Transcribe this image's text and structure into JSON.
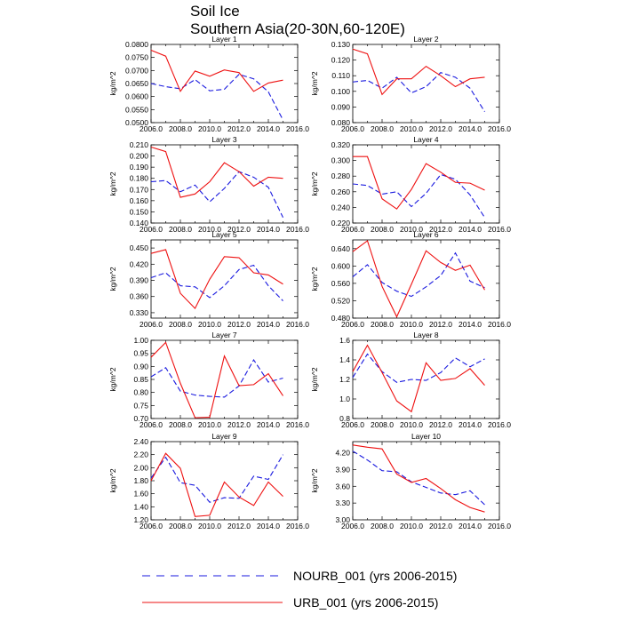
{
  "figure": {
    "title_line1": "Soil Ice",
    "title_line2": "Southern Asia(20-30N,60-120E)"
  },
  "legend": [
    {
      "label": "NOURB_001 (yrs 2006-2015)",
      "color": "#1a1adf",
      "style": "dashed"
    },
    {
      "label": "URB_001 (yrs 2006-2015)",
      "color": "#ee1111",
      "style": "solid"
    }
  ],
  "chart_data": [
    {
      "type": "line",
      "title": "Layer 1",
      "ylabel": "kg/m^2",
      "xlim": [
        2006,
        2016
      ],
      "xticks": [
        "2006.0",
        "2008.0",
        "2010.0",
        "2012.0",
        "2014.0",
        "2016.0"
      ],
      "ylim": [
        0.05,
        0.08
      ],
      "yticks": [
        0.05,
        0.055,
        0.06,
        0.065,
        0.07,
        0.075,
        0.08
      ],
      "ytick_labels": [
        "0.0500",
        "0.0550",
        "0.0600",
        "0.0650",
        "0.0700",
        "0.0750",
        "0.0800"
      ],
      "x": [
        2006,
        2007,
        2008,
        2009,
        2010,
        2011,
        2012,
        2013,
        2014,
        2015
      ],
      "series": [
        {
          "name": "NOURB_001",
          "values": [
            0.065,
            0.0638,
            0.063,
            0.0665,
            0.0622,
            0.0628,
            0.0685,
            0.0668,
            0.0618,
            0.051
          ]
        },
        {
          "name": "URB_001",
          "values": [
            0.0778,
            0.0755,
            0.062,
            0.0698,
            0.0678,
            0.0702,
            0.0692,
            0.062,
            0.0652,
            0.0663
          ]
        }
      ]
    },
    {
      "type": "line",
      "title": "Layer 2",
      "ylabel": "kg/m^2",
      "xlim": [
        2006,
        2016
      ],
      "xticks": [
        "2006.0",
        "2008.0",
        "2010.0",
        "2012.0",
        "2014.0",
        "2016.0"
      ],
      "ylim": [
        0.08,
        0.13
      ],
      "yticks": [
        0.08,
        0.09,
        0.1,
        0.11,
        0.12,
        0.13
      ],
      "ytick_labels": [
        "0.080",
        "0.090",
        "0.100",
        "0.110",
        "0.120",
        "0.130"
      ],
      "x": [
        2006,
        2007,
        2008,
        2009,
        2010,
        2011,
        2012,
        2013,
        2014,
        2015
      ],
      "series": [
        {
          "name": "NOURB_001",
          "values": [
            0.106,
            0.107,
            0.102,
            0.109,
            0.099,
            0.103,
            0.112,
            0.109,
            0.102,
            0.087
          ]
        },
        {
          "name": "URB_001",
          "values": [
            0.127,
            0.124,
            0.098,
            0.108,
            0.108,
            0.116,
            0.11,
            0.103,
            0.108,
            0.109
          ]
        }
      ]
    },
    {
      "type": "line",
      "title": "Layer 3",
      "ylabel": "kg/m^2",
      "xlim": [
        2006,
        2016
      ],
      "xticks": [
        "2006.0",
        "2008.0",
        "2010.0",
        "2012.0",
        "2014.0",
        "2016.0"
      ],
      "ylim": [
        0.14,
        0.21
      ],
      "yticks": [
        0.14,
        0.15,
        0.16,
        0.17,
        0.18,
        0.19,
        0.2,
        0.21
      ],
      "ytick_labels": [
        "0.140",
        "0.150",
        "0.160",
        "0.170",
        "0.180",
        "0.190",
        "0.200",
        "0.210"
      ],
      "x": [
        2006,
        2007,
        2008,
        2009,
        2010,
        2011,
        2012,
        2013,
        2014,
        2015
      ],
      "series": [
        {
          "name": "NOURB_001",
          "values": [
            0.177,
            0.178,
            0.168,
            0.174,
            0.159,
            0.171,
            0.186,
            0.181,
            0.172,
            0.145
          ]
        },
        {
          "name": "URB_001",
          "values": [
            0.208,
            0.204,
            0.163,
            0.166,
            0.177,
            0.194,
            0.186,
            0.173,
            0.181,
            0.18
          ]
        }
      ]
    },
    {
      "type": "line",
      "title": "Layer 4",
      "ylabel": "kg/m^2",
      "xlim": [
        2006,
        2016
      ],
      "xticks": [
        "2006.0",
        "2008.0",
        "2010.0",
        "2012.0",
        "2014.0",
        "2016.0"
      ],
      "ylim": [
        0.22,
        0.32
      ],
      "yticks": [
        0.22,
        0.24,
        0.26,
        0.28,
        0.3,
        0.32
      ],
      "ytick_labels": [
        "0.220",
        "0.240",
        "0.260",
        "0.280",
        "0.300",
        "0.320"
      ],
      "x": [
        2006,
        2007,
        2008,
        2009,
        2010,
        2011,
        2012,
        2013,
        2014,
        2015
      ],
      "series": [
        {
          "name": "NOURB_001",
          "values": [
            0.27,
            0.268,
            0.257,
            0.26,
            0.241,
            0.258,
            0.282,
            0.276,
            0.256,
            0.227
          ]
        },
        {
          "name": "URB_001",
          "values": [
            0.305,
            0.305,
            0.251,
            0.238,
            0.263,
            0.296,
            0.285,
            0.272,
            0.271,
            0.262
          ]
        }
      ]
    },
    {
      "type": "line",
      "title": "Layer 5",
      "ylabel": "kg/m^2",
      "xlim": [
        2006,
        2016
      ],
      "xticks": [
        "2006.0",
        "2008.0",
        "2010.0",
        "2012.0",
        "2014.0",
        "2016.0"
      ],
      "ylim": [
        0.32,
        0.465
      ],
      "yticks": [
        0.33,
        0.36,
        0.39,
        0.42,
        0.45
      ],
      "ytick_labels": [
        "0.330",
        "0.360",
        "0.390",
        "0.420",
        "0.450"
      ],
      "x": [
        2006,
        2007,
        2008,
        2009,
        2010,
        2011,
        2012,
        2013,
        2014,
        2015
      ],
      "series": [
        {
          "name": "NOURB_001",
          "values": [
            0.395,
            0.404,
            0.38,
            0.378,
            0.358,
            0.38,
            0.41,
            0.418,
            0.38,
            0.352
          ]
        },
        {
          "name": "URB_001",
          "values": [
            0.44,
            0.447,
            0.366,
            0.338,
            0.392,
            0.434,
            0.432,
            0.404,
            0.4,
            0.383
          ]
        }
      ]
    },
    {
      "type": "line",
      "title": "Layer 6",
      "ylabel": "kg/m^2",
      "xlim": [
        2006,
        2016
      ],
      "xticks": [
        "2006.0",
        "2008.0",
        "2010.0",
        "2012.0",
        "2014.0",
        "2016.0"
      ],
      "ylim": [
        0.48,
        0.66
      ],
      "yticks": [
        0.48,
        0.52,
        0.56,
        0.6,
        0.64
      ],
      "ytick_labels": [
        "0.480",
        "0.520",
        "0.560",
        "0.600",
        "0.640"
      ],
      "x": [
        2006,
        2007,
        2008,
        2009,
        2010,
        2011,
        2012,
        2013,
        2014,
        2015
      ],
      "series": [
        {
          "name": "NOURB_001",
          "values": [
            0.575,
            0.603,
            0.562,
            0.542,
            0.53,
            0.552,
            0.578,
            0.63,
            0.565,
            0.55
          ]
        },
        {
          "name": "URB_001",
          "values": [
            0.633,
            0.658,
            0.553,
            0.483,
            0.558,
            0.635,
            0.608,
            0.59,
            0.602,
            0.545
          ]
        }
      ]
    },
    {
      "type": "line",
      "title": "Layer 7",
      "ylabel": "kg/m^2",
      "xlim": [
        2006,
        2016
      ],
      "xticks": [
        "2006.0",
        "2008.0",
        "2010.0",
        "2012.0",
        "2014.0",
        "2016.0"
      ],
      "ylim": [
        0.7,
        1.0
      ],
      "yticks": [
        0.7,
        0.75,
        0.8,
        0.85,
        0.9,
        0.95,
        1.0
      ],
      "ytick_labels": [
        "0.70",
        "0.75",
        "0.80",
        "0.85",
        "0.90",
        "0.95",
        "1.00"
      ],
      "x": [
        2006,
        2007,
        2008,
        2009,
        2010,
        2011,
        2012,
        2013,
        2014,
        2015
      ],
      "series": [
        {
          "name": "NOURB_001",
          "values": [
            0.86,
            0.895,
            0.805,
            0.79,
            0.785,
            0.782,
            0.825,
            0.925,
            0.84,
            0.855
          ]
        },
        {
          "name": "URB_001",
          "values": [
            0.935,
            0.992,
            0.835,
            0.703,
            0.705,
            0.94,
            0.826,
            0.83,
            0.872,
            0.787
          ]
        }
      ]
    },
    {
      "type": "line",
      "title": "Layer 8",
      "ylabel": "kg/m^2",
      "xlim": [
        2006,
        2016
      ],
      "xticks": [
        "2006.0",
        "2008.0",
        "2010.0",
        "2012.0",
        "2014.0",
        "2016.0"
      ],
      "ylim": [
        0.8,
        1.6
      ],
      "yticks": [
        0.8,
        1.0,
        1.2,
        1.4,
        1.6
      ],
      "ytick_labels": [
        "0.8",
        "1.0",
        "1.2",
        "1.4",
        "1.6"
      ],
      "x": [
        2006,
        2007,
        2008,
        2009,
        2010,
        2011,
        2012,
        2013,
        2014,
        2015
      ],
      "series": [
        {
          "name": "NOURB_001",
          "values": [
            1.22,
            1.46,
            1.28,
            1.17,
            1.2,
            1.19,
            1.27,
            1.42,
            1.33,
            1.41
          ]
        },
        {
          "name": "URB_001",
          "values": [
            1.28,
            1.55,
            1.27,
            0.98,
            0.87,
            1.37,
            1.19,
            1.21,
            1.31,
            1.14
          ]
        }
      ]
    },
    {
      "type": "line",
      "title": "Layer 9",
      "ylabel": "kg/m^2",
      "xlim": [
        2006,
        2016
      ],
      "xticks": [
        "2006.0",
        "2008.0",
        "2010.0",
        "2012.0",
        "2014.0",
        "2016.0"
      ],
      "ylim": [
        1.2,
        2.4
      ],
      "yticks": [
        1.2,
        1.4,
        1.6,
        1.8,
        2.0,
        2.2,
        2.4
      ],
      "ytick_labels": [
        "1.20",
        "1.40",
        "1.60",
        "1.80",
        "2.00",
        "2.20",
        "2.40"
      ],
      "x": [
        2006,
        2007,
        2008,
        2009,
        2010,
        2011,
        2012,
        2013,
        2014,
        2015
      ],
      "series": [
        {
          "name": "NOURB_001",
          "values": [
            1.84,
            2.16,
            1.77,
            1.73,
            1.47,
            1.54,
            1.53,
            1.87,
            1.82,
            2.2
          ]
        },
        {
          "name": "URB_001",
          "values": [
            1.8,
            2.22,
            1.99,
            1.25,
            1.27,
            1.78,
            1.55,
            1.42,
            1.78,
            1.56
          ]
        }
      ]
    },
    {
      "type": "line",
      "title": "Layer 10",
      "ylabel": "kg/m^2",
      "xlim": [
        2006,
        2016
      ],
      "xticks": [
        "2006.0",
        "2008.0",
        "2010.0",
        "2012.0",
        "2014.0",
        "2016.0"
      ],
      "ylim": [
        3.0,
        4.4
      ],
      "yticks": [
        3.0,
        3.3,
        3.6,
        3.9,
        4.2
      ],
      "ytick_labels": [
        "3.00",
        "3.30",
        "3.60",
        "3.90",
        "4.20"
      ],
      "x": [
        2006,
        2007,
        2008,
        2009,
        2010,
        2011,
        2012,
        2013,
        2014,
        2015
      ],
      "series": [
        {
          "name": "NOURB_001",
          "values": [
            4.23,
            4.07,
            3.88,
            3.86,
            3.68,
            3.58,
            3.48,
            3.45,
            3.52,
            3.27
          ]
        },
        {
          "name": "URB_001",
          "values": [
            4.34,
            4.3,
            4.27,
            3.82,
            3.67,
            3.74,
            3.56,
            3.36,
            3.22,
            3.14
          ]
        }
      ]
    }
  ]
}
